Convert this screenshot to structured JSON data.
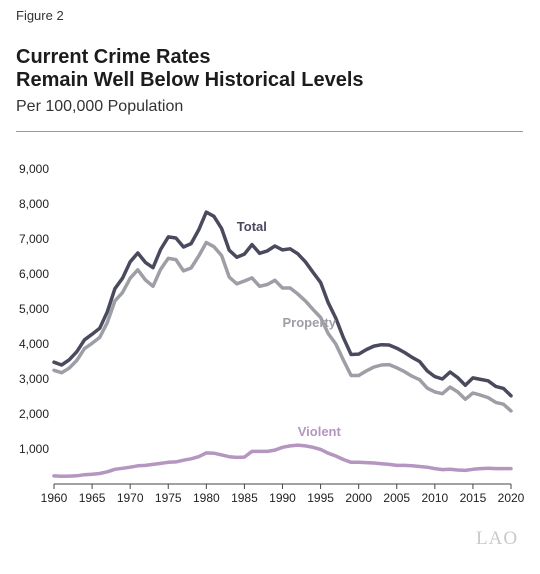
{
  "figure_label": "Figure 2",
  "title_lines": [
    "Current Crime Rates",
    "Remain Well Below Historical Levels"
  ],
  "subtitle": "Per 100,000 Population",
  "logo_text": "LAO",
  "colors": {
    "total": "#4a4a5e",
    "property": "#9e9ea6",
    "violent": "#b496c0",
    "axis": "#444444"
  },
  "chart_data": {
    "type": "line",
    "title": "Current Crime Rates Remain Well Below Historical Levels",
    "subtitle": "Per 100,000 Population",
    "xlim": [
      1960,
      2020
    ],
    "ylim": [
      0,
      9000
    ],
    "x_ticks": [
      "1960",
      "1965",
      "1970",
      "1975",
      "1980",
      "1985",
      "1990",
      "1995",
      "2000",
      "2005",
      "2010",
      "2015",
      "2020"
    ],
    "y_ticks": [
      "1,000",
      "2,000",
      "3,000",
      "4,000",
      "5,000",
      "6,000",
      "7,000",
      "8,000",
      "9,000"
    ],
    "x": [
      1960,
      1961,
      1962,
      1963,
      1964,
      1965,
      1966,
      1967,
      1968,
      1969,
      1970,
      1971,
      1972,
      1973,
      1974,
      1975,
      1976,
      1977,
      1978,
      1979,
      1980,
      1981,
      1982,
      1983,
      1984,
      1985,
      1986,
      1987,
      1988,
      1989,
      1990,
      1991,
      1992,
      1993,
      1994,
      1995,
      1996,
      1997,
      1998,
      1999,
      2000,
      2001,
      2002,
      2003,
      2004,
      2005,
      2006,
      2007,
      2008,
      2009,
      2010,
      2011,
      2012,
      2013,
      2014,
      2015,
      2016,
      2017,
      2018,
      2019,
      2020
    ],
    "series": [
      {
        "name": "Total",
        "label_year": 1984,
        "label_value": 7230,
        "values": [
          3480,
          3400,
          3550,
          3780,
          4120,
          4280,
          4450,
          4920,
          5580,
          5880,
          6350,
          6600,
          6330,
          6180,
          6700,
          7060,
          7030,
          6770,
          6870,
          7260,
          7770,
          7650,
          7300,
          6680,
          6480,
          6570,
          6840,
          6590,
          6660,
          6800,
          6690,
          6720,
          6580,
          6350,
          6050,
          5760,
          5180,
          4740,
          4180,
          3700,
          3710,
          3840,
          3940,
          3980,
          3970,
          3880,
          3760,
          3620,
          3500,
          3230,
          3070,
          3000,
          3200,
          3040,
          2820,
          3030,
          2990,
          2950,
          2790,
          2730,
          2520
        ]
      },
      {
        "name": "Property",
        "label_year": 1990,
        "label_value": 4490,
        "values": [
          3250,
          3180,
          3310,
          3530,
          3870,
          4020,
          4190,
          4610,
          5230,
          5470,
          5880,
          6120,
          5830,
          5650,
          6130,
          6450,
          6410,
          6090,
          6170,
          6510,
          6900,
          6780,
          6530,
          5910,
          5720,
          5800,
          5890,
          5650,
          5700,
          5820,
          5600,
          5600,
          5430,
          5230,
          4990,
          4760,
          4300,
          4000,
          3540,
          3100,
          3100,
          3230,
          3340,
          3400,
          3410,
          3320,
          3210,
          3080,
          2980,
          2740,
          2630,
          2580,
          2770,
          2630,
          2420,
          2600,
          2540,
          2470,
          2330,
          2280,
          2090
        ]
      },
      {
        "name": "Violent",
        "label_year": 1992,
        "label_value": 1370,
        "values": [
          230,
          220,
          225,
          235,
          265,
          280,
          300,
          350,
          420,
          450,
          480,
          520,
          530,
          560,
          590,
          620,
          630,
          680,
          720,
          780,
          890,
          880,
          830,
          780,
          760,
          770,
          930,
          930,
          930,
          970,
          1050,
          1090,
          1110,
          1090,
          1050,
          990,
          880,
          800,
          700,
          620,
          620,
          610,
          600,
          580,
          560,
          530,
          530,
          520,
          500,
          480,
          440,
          410,
          420,
          400,
          390,
          420,
          440,
          450,
          440,
          440,
          440
        ]
      }
    ]
  }
}
